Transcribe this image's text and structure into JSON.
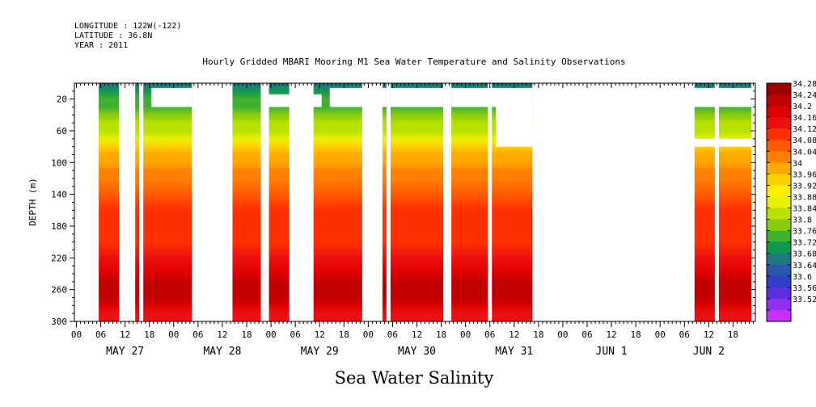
{
  "header": {
    "longitude": "LONGITUDE : 122W(-122)",
    "latitude": "LATITUDE : 36.8N",
    "year": "YEAR : 2011"
  },
  "chart_data": {
    "type": "heatmap",
    "title": "Hourly Gridded MBARI Mooring M1 Sea Water Temperature and Salinity Observations",
    "xlabel": "Sea Water Salinity",
    "ylabel": "DEPTH (m)",
    "ylim": [
      300,
      0
    ],
    "y_ticks": [
      20,
      60,
      100,
      140,
      180,
      220,
      260,
      300
    ],
    "x_unit": "hours since May 27 2011 00:00",
    "xlim": [
      -0.5,
      167.5
    ],
    "hour_tick_labels": [
      "00",
      "06",
      "12",
      "18",
      "00",
      "06",
      "12",
      "18",
      "00",
      "06",
      "12",
      "18",
      "00",
      "06",
      "12",
      "18",
      "00",
      "06",
      "12",
      "18",
      "00",
      "06",
      "12",
      "18",
      "00",
      "06",
      "12",
      "18"
    ],
    "day_labels": [
      "MAY 27",
      "MAY 28",
      "MAY 29",
      "MAY 30",
      "MAY 31",
      "JUN  1",
      "JUN  2"
    ],
    "colorbar": {
      "levels": [
        "34.28",
        "34.24",
        "34.2",
        "34.16",
        "34.12",
        "34.08",
        "34.04",
        "34",
        "33.96",
        "33.92",
        "33.88",
        "33.84",
        "33.8",
        "33.76",
        "33.72",
        "33.68",
        "33.64",
        "33.6",
        "33.56",
        "33.52"
      ],
      "colors": [
        "#9b0000",
        "#c20000",
        "#dd0000",
        "#ee1010",
        "#ff3000",
        "#ff5a00",
        "#ff8000",
        "#ffa800",
        "#ffd000",
        "#ffee00",
        "#e8f000",
        "#b8e000",
        "#88cc10",
        "#40b030",
        "#109850",
        "#207880",
        "#2a58a8",
        "#3040c8",
        "#5a30e0",
        "#9030f0",
        "#c830ff"
      ]
    },
    "salinity_profile": {
      "depth": [
        2,
        10,
        20,
        30,
        40,
        50,
        60,
        70,
        80,
        90,
        100,
        110,
        120,
        140,
        160,
        180,
        200,
        220,
        240,
        250,
        260,
        270,
        280,
        290,
        300
      ],
      "value": [
        33.7,
        33.74,
        33.77,
        33.79,
        33.81,
        33.84,
        33.87,
        33.91,
        33.96,
        34.0,
        34.02,
        34.05,
        34.07,
        34.1,
        34.12,
        34.12,
        34.14,
        34.16,
        34.21,
        34.25,
        34.26,
        34.24,
        34.21,
        34.19,
        34.18
      ]
    },
    "data_gaps_hours": [
      [
        -0.5,
        5.5
      ],
      [
        10.5,
        14.5
      ],
      [
        15.5,
        16.5
      ],
      [
        28.5,
        38.5
      ],
      [
        45.5,
        47.5
      ],
      [
        52.5,
        58.5
      ],
      [
        70.5,
        75.5
      ],
      [
        76.5,
        77.5
      ],
      [
        90.5,
        92.5
      ],
      [
        101.5,
        102.5
      ],
      [
        112.5,
        152.5
      ],
      [
        157.5,
        158.5
      ],
      [
        166.5,
        167.5
      ]
    ],
    "partial_gaps": [
      {
        "hours": [
          18.5,
          28.5
        ],
        "top_depth": 6,
        "bottom_depth": 30
      },
      {
        "hours": [
          28.5,
          34.5
        ],
        "top_depth": 6,
        "bottom_depth": 18
      },
      {
        "hours": [
          45.5,
          46.5
        ],
        "top_depth": 6,
        "bottom_depth": 30
      },
      {
        "hours": [
          47.5,
          60.5
        ],
        "top_depth": 14,
        "bottom_depth": 30
      },
      {
        "hours": [
          62.5,
          76.5
        ],
        "top_depth": 6,
        "bottom_depth": 30
      },
      {
        "hours": [
          77.5,
          90.5
        ],
        "top_depth": 6,
        "bottom_depth": 30
      },
      {
        "hours": [
          92.5,
          112.5
        ],
        "top_depth": 6,
        "bottom_depth": 30
      },
      {
        "hours": [
          112.5,
          167.5
        ],
        "top_depth": 6,
        "bottom_depth": 30
      },
      {
        "hours": [
          103.5,
          112.5
        ],
        "top_depth": 30,
        "bottom_depth": 70
      },
      {
        "hours": [
          103.5,
          167.5
        ],
        "top_depth": 70,
        "bottom_depth": 80
      }
    ]
  }
}
